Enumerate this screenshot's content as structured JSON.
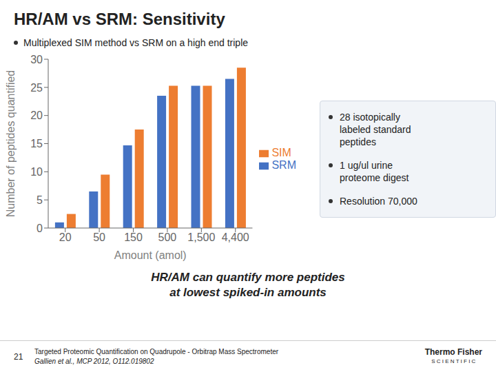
{
  "chart_data": {
    "type": "bar",
    "title": "HR/AM vs SRM: Sensitivity",
    "subtitle": "Multiplexed SIM method vs SRM on a high end triple",
    "categories": [
      "20",
      "50",
      "150",
      "500",
      "1,500",
      "4,400"
    ],
    "series": [
      {
        "name": "SRM",
        "color": "#4472C4",
        "values": [
          1,
          6.5,
          14.7,
          23.5,
          25.3,
          26.5
        ]
      },
      {
        "name": "SIM",
        "color": "#ED7D31",
        "values": [
          2.5,
          9.5,
          17.5,
          25.3,
          25.3,
          28.5
        ]
      }
    ],
    "xlabel": "Amount (amol)",
    "ylabel": "Number of peptides quantified",
    "ylim": [
      0,
      30
    ],
    "yticks": [
      0,
      5,
      10,
      15,
      20,
      25,
      30
    ],
    "grid": false,
    "legend": "right",
    "annotations": [
      "28 isotopically\nlabeled standard\npeptides",
      "1 ug/ul urine\nproteome digest",
      "Resolution 70,000",
      "HR/AM can quantify more peptides",
      "at lowest spiked-in amounts",
      "21",
      "Targeted Proteomic Quantification on Quadrupole - Orbitrap Mass Spectrometer",
      "Gallien et al., MCP 2012, O112.019802",
      "Thermo",
      "Fisher",
      "S C I E N T I F I C"
    ]
  }
}
